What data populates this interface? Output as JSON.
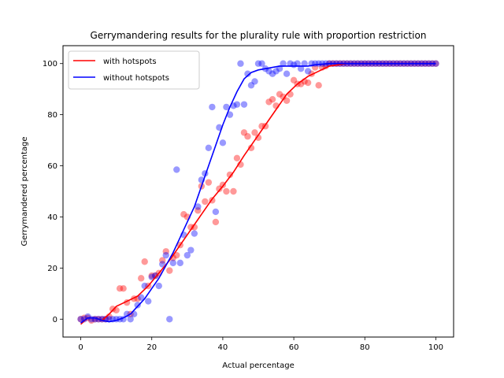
{
  "chart_data": {
    "type": "scatter",
    "title": "Gerrymandering results for the plurality rule with proportion restriction",
    "xlabel": "Actual percentage",
    "ylabel": "Gerrymandered percentage",
    "xlim": [
      -5,
      105
    ],
    "ylim": [
      -7,
      107
    ],
    "xticks": [
      0,
      20,
      40,
      60,
      80,
      100
    ],
    "yticks": [
      0,
      20,
      40,
      60,
      80,
      100
    ],
    "legend_position": "top-left",
    "grid": false,
    "series": [
      {
        "name": "with hotspots",
        "color": "#ff0000",
        "points": [
          [
            0,
            0
          ],
          [
            1,
            0.5
          ],
          [
            2,
            0.5
          ],
          [
            3,
            -0.5
          ],
          [
            4,
            0
          ],
          [
            5,
            0
          ],
          [
            6,
            0
          ],
          [
            7,
            0
          ],
          [
            8,
            1
          ],
          [
            9,
            4
          ],
          [
            10,
            3.5
          ],
          [
            11,
            12
          ],
          [
            12,
            12
          ],
          [
            13,
            6.5
          ],
          [
            14,
            2
          ],
          [
            15,
            8
          ],
          [
            16,
            8
          ],
          [
            17,
            16
          ],
          [
            18,
            22.5
          ],
          [
            19,
            13
          ],
          [
            20,
            17
          ],
          [
            21,
            17
          ],
          [
            22,
            18
          ],
          [
            23,
            23
          ],
          [
            24,
            26.5
          ],
          [
            25,
            19
          ],
          [
            26,
            24
          ],
          [
            27,
            25
          ],
          [
            28,
            29
          ],
          [
            29,
            41
          ],
          [
            30,
            40
          ],
          [
            31,
            36
          ],
          [
            32,
            36
          ],
          [
            33,
            42.5
          ],
          [
            34,
            52
          ],
          [
            35,
            46
          ],
          [
            36,
            53.5
          ],
          [
            37,
            46.5
          ],
          [
            38,
            38
          ],
          [
            39,
            51
          ],
          [
            40,
            52.5
          ],
          [
            41,
            50
          ],
          [
            42,
            56.5
          ],
          [
            43,
            50
          ],
          [
            44,
            63
          ],
          [
            45,
            60.5
          ],
          [
            46,
            73
          ],
          [
            47,
            71.5
          ],
          [
            48,
            67
          ],
          [
            49,
            73
          ],
          [
            50,
            71
          ],
          [
            51,
            75.5
          ],
          [
            52,
            75.5
          ],
          [
            53,
            85
          ],
          [
            54,
            86
          ],
          [
            55,
            83.5
          ],
          [
            56,
            88
          ],
          [
            57,
            87
          ],
          [
            58,
            85.5
          ],
          [
            59,
            88
          ],
          [
            60,
            93.5
          ],
          [
            61,
            92
          ],
          [
            62,
            92
          ],
          [
            63,
            93
          ],
          [
            64,
            92.5
          ],
          [
            65,
            96
          ],
          [
            66,
            98.5
          ],
          [
            67,
            91.5
          ],
          [
            68,
            98.5
          ],
          [
            69,
            99
          ],
          [
            70,
            100
          ],
          [
            71,
            100
          ],
          [
            72,
            100
          ],
          [
            73,
            100
          ],
          [
            74,
            100
          ],
          [
            75,
            100
          ],
          [
            76,
            100
          ],
          [
            77,
            100
          ],
          [
            78,
            100
          ],
          [
            79,
            100
          ],
          [
            80,
            100
          ],
          [
            81,
            100
          ],
          [
            82,
            100
          ],
          [
            83,
            100
          ],
          [
            84,
            100
          ],
          [
            85,
            100
          ],
          [
            86,
            100
          ],
          [
            87,
            100
          ],
          [
            88,
            100
          ],
          [
            89,
            100
          ],
          [
            90,
            100
          ],
          [
            91,
            100
          ],
          [
            92,
            100
          ],
          [
            93,
            100
          ],
          [
            94,
            100
          ],
          [
            95,
            100
          ],
          [
            96,
            100
          ],
          [
            97,
            100
          ],
          [
            98,
            100
          ],
          [
            99,
            100
          ],
          [
            100,
            100
          ]
        ],
        "fit": [
          [
            0,
            -2
          ],
          [
            2,
            0.5
          ],
          [
            4,
            0.5
          ],
          [
            6,
            -0.5
          ],
          [
            8,
            2
          ],
          [
            10,
            5
          ],
          [
            13,
            7
          ],
          [
            16,
            9
          ],
          [
            19,
            13
          ],
          [
            22,
            18
          ],
          [
            25,
            23
          ],
          [
            28,
            29
          ],
          [
            31,
            35
          ],
          [
            34,
            41
          ],
          [
            37,
            47
          ],
          [
            40,
            52
          ],
          [
            43,
            57.5
          ],
          [
            46,
            64
          ],
          [
            49,
            70
          ],
          [
            52,
            76
          ],
          [
            55,
            82
          ],
          [
            58,
            88
          ],
          [
            61,
            92
          ],
          [
            64,
            95
          ],
          [
            67,
            97
          ],
          [
            70,
            99
          ],
          [
            75,
            100
          ],
          [
            80,
            100
          ],
          [
            85,
            100
          ],
          [
            90,
            100
          ],
          [
            95,
            100
          ],
          [
            100,
            100
          ]
        ]
      },
      {
        "name": "without hotspots",
        "color": "#0000ff",
        "points": [
          [
            0,
            0
          ],
          [
            1,
            0
          ],
          [
            2,
            1
          ],
          [
            3,
            0
          ],
          [
            4,
            0
          ],
          [
            5,
            0
          ],
          [
            6,
            0
          ],
          [
            7,
            0
          ],
          [
            8,
            0
          ],
          [
            9,
            0
          ],
          [
            10,
            0
          ],
          [
            11,
            0
          ],
          [
            12,
            0
          ],
          [
            13,
            2
          ],
          [
            14,
            0
          ],
          [
            15,
            2
          ],
          [
            16,
            5.5
          ],
          [
            17,
            8.5
          ],
          [
            18,
            13
          ],
          [
            19,
            7
          ],
          [
            20,
            16.5
          ],
          [
            21,
            17
          ],
          [
            22,
            13
          ],
          [
            23,
            21.5
          ],
          [
            24,
            25
          ],
          [
            25,
            0
          ],
          [
            26,
            22
          ],
          [
            27,
            58.5
          ],
          [
            28,
            22
          ],
          [
            29,
            33
          ],
          [
            30,
            25
          ],
          [
            31,
            27
          ],
          [
            32,
            33.5
          ],
          [
            33,
            44
          ],
          [
            34,
            54.5
          ],
          [
            35,
            57
          ],
          [
            36,
            67
          ],
          [
            37,
            83
          ],
          [
            38,
            42
          ],
          [
            39,
            75
          ],
          [
            40,
            69
          ],
          [
            41,
            83
          ],
          [
            42,
            80
          ],
          [
            43,
            83.5
          ],
          [
            44,
            84
          ],
          [
            45,
            100
          ],
          [
            46,
            84
          ],
          [
            47,
            96
          ],
          [
            48,
            91.5
          ],
          [
            49,
            93
          ],
          [
            50,
            100
          ],
          [
            51,
            100
          ],
          [
            52,
            98
          ],
          [
            53,
            97
          ],
          [
            54,
            96
          ],
          [
            55,
            97
          ],
          [
            56,
            98
          ],
          [
            57,
            100
          ],
          [
            58,
            96
          ],
          [
            59,
            100
          ],
          [
            60,
            99.5
          ],
          [
            61,
            100
          ],
          [
            62,
            98
          ],
          [
            63,
            100
          ],
          [
            64,
            97
          ],
          [
            65,
            100
          ],
          [
            66,
            100
          ],
          [
            67,
            100
          ],
          [
            68,
            100
          ],
          [
            69,
            100
          ],
          [
            70,
            100
          ],
          [
            71,
            100
          ],
          [
            72,
            100
          ],
          [
            73,
            100
          ],
          [
            74,
            100
          ],
          [
            75,
            100
          ],
          [
            76,
            100
          ],
          [
            77,
            100
          ],
          [
            78,
            100
          ],
          [
            79,
            100
          ],
          [
            80,
            100
          ],
          [
            81,
            100
          ],
          [
            82,
            100
          ],
          [
            83,
            100
          ],
          [
            84,
            100
          ],
          [
            85,
            100
          ],
          [
            86,
            100
          ],
          [
            87,
            100
          ],
          [
            88,
            100
          ],
          [
            89,
            100
          ],
          [
            90,
            100
          ],
          [
            91,
            100
          ],
          [
            92,
            100
          ],
          [
            93,
            100
          ],
          [
            94,
            100
          ],
          [
            95,
            100
          ],
          [
            96,
            100
          ],
          [
            97,
            100
          ],
          [
            98,
            100
          ],
          [
            99,
            100
          ],
          [
            100,
            100
          ]
        ],
        "fit": [
          [
            0,
            -1.5
          ],
          [
            2,
            0.5
          ],
          [
            4,
            0.5
          ],
          [
            6,
            -0.5
          ],
          [
            8,
            -1
          ],
          [
            10,
            -0.5
          ],
          [
            12,
            0.5
          ],
          [
            14,
            2
          ],
          [
            16,
            5
          ],
          [
            18,
            8
          ],
          [
            20,
            12
          ],
          [
            22,
            16
          ],
          [
            24,
            21
          ],
          [
            26,
            26
          ],
          [
            28,
            32
          ],
          [
            30,
            38
          ],
          [
            32,
            44
          ],
          [
            34,
            52
          ],
          [
            36,
            60
          ],
          [
            38,
            68
          ],
          [
            40,
            76
          ],
          [
            42,
            83
          ],
          [
            44,
            89
          ],
          [
            46,
            94
          ],
          [
            48,
            96.5
          ],
          [
            50,
            97.5
          ],
          [
            52,
            98
          ],
          [
            54,
            98.5
          ],
          [
            56,
            99
          ],
          [
            58,
            99
          ],
          [
            60,
            99
          ],
          [
            62,
            99
          ],
          [
            64,
            99
          ],
          [
            66,
            99.5
          ],
          [
            70,
            100
          ],
          [
            75,
            100
          ],
          [
            80,
            100
          ],
          [
            85,
            100
          ],
          [
            90,
            100
          ],
          [
            95,
            100
          ],
          [
            100,
            100
          ]
        ]
      }
    ]
  }
}
